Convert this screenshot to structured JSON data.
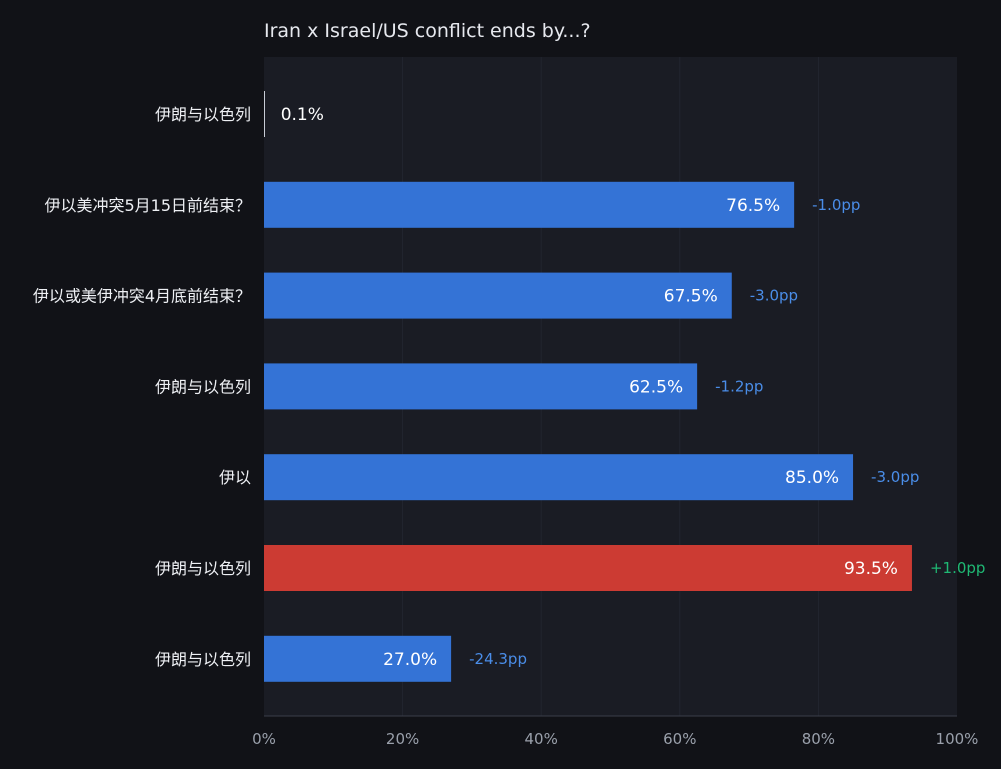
{
  "chart_data": {
    "type": "bar",
    "orientation": "horizontal",
    "title": "Iran x Israel/US conflict ends by...?",
    "categories": [
      "伊朗与以色列",
      "伊以美冲突5月15日前结束？",
      "伊以或美伊冲突4月底前结束？",
      "伊朗与以色列",
      "伊以",
      "伊朗与以色列",
      "伊朗与以色列"
    ],
    "values": [
      0.1,
      76.5,
      67.5,
      62.5,
      85.0,
      93.5,
      27.0
    ],
    "value_labels": [
      "0.1%",
      "76.5%",
      "67.5%",
      "62.5%",
      "85.0%",
      "93.5%",
      "27.0%"
    ],
    "changes": [
      "",
      "-1.0pp",
      "-3.0pp",
      "-1.2pp",
      "-3.0pp",
      "+1.0pp",
      "-24.3pp"
    ],
    "highlight_index": 5,
    "xlim": [
      0,
      100
    ],
    "x_ticks": [
      "0%",
      "20%",
      "40%",
      "60%",
      "80%",
      "100%"
    ],
    "x_tick_values": [
      0,
      20,
      40,
      60,
      80,
      100
    ],
    "grid": true,
    "colors": {
      "bar": "#3473d6",
      "bar_highlight": "#cc3b33",
      "change_negative": "#4a8de8",
      "change_positive": "#1fb974",
      "background": "#111217",
      "plot_background": "#1a1c24",
      "grid": "#22252f"
    }
  }
}
